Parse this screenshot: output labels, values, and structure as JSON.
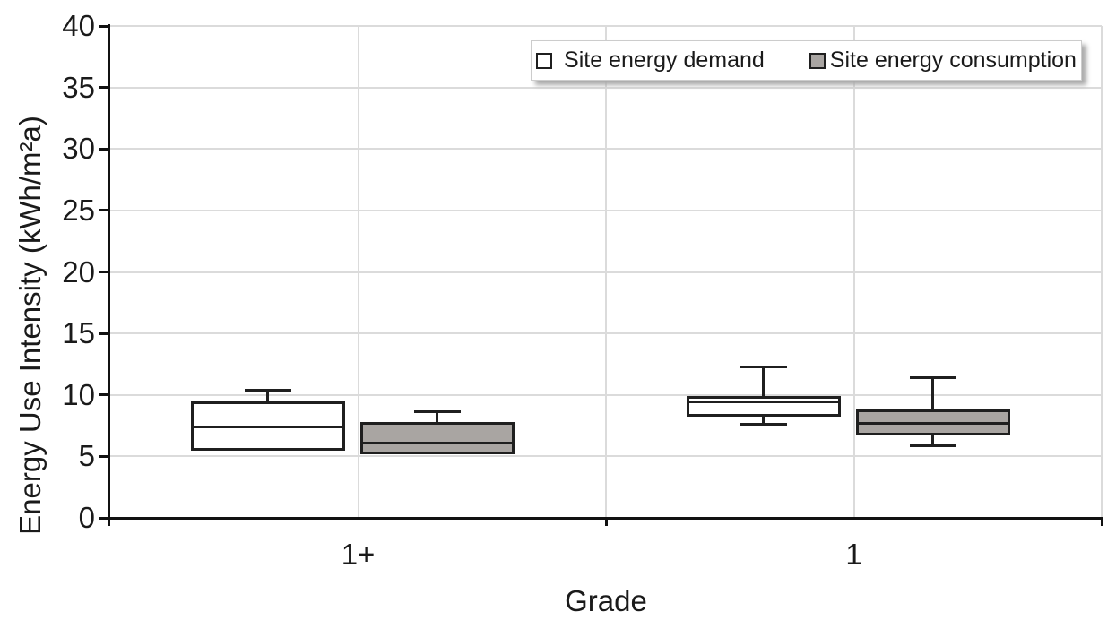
{
  "chart_data": {
    "type": "boxplot",
    "title": "",
    "xlabel": "Grade",
    "ylabel": "Energy Use Intensity (kWh/m²a)",
    "ylim": [
      0,
      40
    ],
    "yticks": [
      0,
      5,
      10,
      15,
      20,
      25,
      30,
      35,
      40
    ],
    "categories": [
      "1+",
      "1"
    ],
    "series": [
      {
        "name": "Site energy demand",
        "fill": "#FFFFFF",
        "boxes": [
          {
            "category": "1+",
            "whisker_low": null,
            "q1": 5.5,
            "median": 7.4,
            "q3": 9.5,
            "whisker_high": 10.4
          },
          {
            "category": "1",
            "whisker_low": 7.6,
            "q1": 8.2,
            "median": 9.4,
            "q3": 9.9,
            "whisker_high": 12.3
          }
        ]
      },
      {
        "name": "Site energy consumption",
        "fill": "#A9A5A2",
        "boxes": [
          {
            "category": "1+",
            "whisker_low": null,
            "q1": 5.2,
            "median": 6.1,
            "q3": 7.8,
            "whisker_high": 8.6
          },
          {
            "category": "1",
            "whisker_low": 5.9,
            "q1": 6.7,
            "median": 7.7,
            "q3": 8.8,
            "whisker_high": 11.4
          }
        ]
      }
    ],
    "legend_position": "top-right",
    "grid": true
  },
  "colors": {
    "box_border": "#1F1F1F",
    "axis": "#111111",
    "gridline": "#DBDBDB",
    "text": "#1A1A1A",
    "legend_border": "#CCCCCC"
  }
}
